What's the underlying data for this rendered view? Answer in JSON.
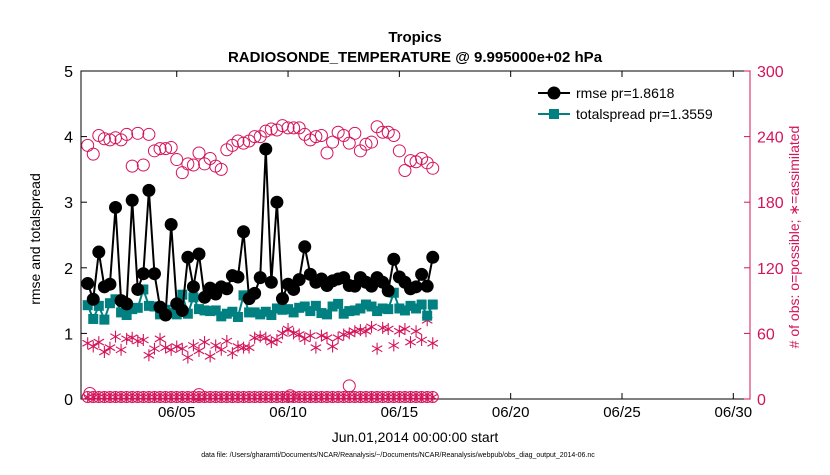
{
  "chart_data": {
    "type": "line",
    "title": "Tropics",
    "subtitle": "RADIOSONDE_TEMPERATURE @ 9.995000e+02 hPa",
    "xlabel": "Jun.01,2014 00:00:00 start",
    "ylabel_left": "rmse and totalspread",
    "ylabel_right": "# of obs: o=possible; ∗=assimilated",
    "footnote": "data file: /Users/gharamti/Documents/NCAR/Reanalysis/~/Documents/NCAR/Reanalysis/webpub/obs_diag_output_2014-06.nc",
    "xlim": [
      0.7,
      30.75
    ],
    "ylim_left": [
      0,
      5
    ],
    "ylim_right": [
      0,
      300
    ],
    "x_ticks": [
      5,
      10,
      15,
      20,
      25,
      30
    ],
    "x_tick_labels": [
      "06/05",
      "06/10",
      "06/15",
      "06/20",
      "06/25",
      "06/30"
    ],
    "y_ticks_left": [
      0,
      1,
      2,
      3,
      4,
      5
    ],
    "y_tick_labels_left": [
      "0",
      "1",
      "2",
      "3",
      "4",
      "5"
    ],
    "y_ticks_right": [
      0,
      60,
      120,
      180,
      240,
      300
    ],
    "y_tick_labels_right": [
      "0",
      "60",
      "120",
      "180",
      "240",
      "300"
    ],
    "legend": [
      {
        "label": "rmse pr=1.8618",
        "color": "#000000"
      },
      {
        "label": "totalspread pr=1.3559",
        "color": "#008080"
      }
    ],
    "colors": {
      "rmse": "#000000",
      "totalspread": "#008080",
      "obs": "#d4145a"
    },
    "x_start": 1.0,
    "x_step": 0.25,
    "series": [
      {
        "name": "rmse",
        "axis": "left",
        "values": [
          1.76,
          1.52,
          2.24,
          1.71,
          1.75,
          2.92,
          1.5,
          1.45,
          3.03,
          1.67,
          1.91,
          3.18,
          1.91,
          1.4,
          1.28,
          2.66,
          1.45,
          1.35,
          2.16,
          1.71,
          2.21,
          1.55,
          1.69,
          1.6,
          1.71,
          1.68,
          1.88,
          1.86,
          2.55,
          1.53,
          1.61,
          1.85,
          3.81,
          1.78,
          3.0,
          1.53,
          1.75,
          1.67,
          1.82,
          2.32,
          1.9,
          1.78,
          1.83,
          1.73,
          1.8,
          1.83,
          1.85,
          1.73,
          1.72,
          1.85,
          1.78,
          1.72,
          1.85,
          1.78,
          1.65,
          2.13,
          1.86,
          1.78,
          1.68,
          1.71,
          1.9,
          1.72,
          2.16
        ]
      },
      {
        "name": "totalspread",
        "axis": "left",
        "values": [
          1.43,
          1.22,
          1.42,
          1.21,
          1.46,
          1.52,
          1.32,
          1.28,
          1.37,
          1.39,
          1.67,
          1.42,
          1.41,
          1.29,
          1.36,
          1.31,
          1.29,
          1.59,
          1.3,
          1.55,
          1.37,
          1.35,
          1.34,
          1.35,
          1.26,
          1.3,
          1.33,
          1.25,
          1.58,
          1.32,
          1.32,
          1.29,
          1.33,
          1.28,
          1.38,
          1.36,
          1.37,
          1.32,
          1.39,
          1.41,
          1.34,
          1.42,
          1.31,
          1.29,
          1.41,
          1.45,
          1.3,
          1.34,
          1.35,
          1.38,
          1.44,
          1.41,
          1.34,
          1.38,
          1.37,
          1.62,
          1.38,
          1.35,
          1.42,
          1.38,
          1.44,
          1.27,
          1.44
        ]
      },
      {
        "name": "possible",
        "axis": "right",
        "values": [
          232,
          224,
          241,
          238,
          237,
          239,
          237,
          242,
          213,
          243,
          214,
          242,
          227,
          229,
          229,
          230,
          219,
          207,
          215,
          214,
          225,
          215,
          220,
          213,
          210,
          228,
          232,
          236,
          234,
          236,
          240,
          240,
          245,
          247,
          246,
          250,
          248,
          248,
          248,
          242,
          237,
          240,
          241,
          225,
          235,
          244,
          241,
          234,
          243,
          227,
          233,
          235,
          249,
          244,
          244,
          241,
          227,
          209,
          218,
          217,
          220,
          216,
          211
        ]
      },
      {
        "name": "possible_low",
        "axis": "right",
        "values": [
          0,
          0,
          0,
          0,
          0,
          0,
          0,
          0,
          0,
          0,
          0,
          0,
          0,
          0,
          0,
          0,
          0,
          0,
          0,
          0,
          0,
          0,
          0,
          0,
          0,
          0,
          0,
          0,
          0,
          0,
          0,
          0,
          0,
          0,
          0,
          0,
          0,
          0,
          0,
          0,
          0,
          0,
          0,
          0,
          0,
          0,
          0,
          0,
          0,
          0,
          0,
          0,
          0,
          0,
          0,
          0,
          0,
          0,
          0,
          0,
          0,
          0,
          0
        ]
      },
      {
        "name": "assimilated",
        "axis": "right",
        "values": [
          51,
          48,
          52,
          43,
          47,
          57,
          45,
          55,
          56,
          53,
          54,
          40,
          46,
          55,
          47,
          45,
          48,
          46,
          38,
          49,
          44,
          52,
          39,
          49,
          45,
          53,
          42,
          48,
          47,
          47,
          56,
          57,
          56,
          52,
          54,
          60,
          64,
          60,
          59,
          55,
          58,
          47,
          58,
          56,
          48,
          56,
          59,
          60,
          62,
          63,
          62,
          66,
          46,
          65,
          64,
          49,
          62,
          64,
          52,
          62,
          54,
          72,
          51
        ]
      },
      {
        "name": "assimilated_low",
        "axis": "right",
        "values": [
          0,
          0,
          0,
          0,
          0,
          0,
          0,
          0,
          0,
          0,
          0,
          0,
          0,
          0,
          0,
          0,
          0,
          0,
          0,
          0,
          0,
          0,
          0,
          0,
          0,
          0,
          0,
          0,
          0,
          0,
          0,
          0,
          0,
          0,
          0,
          0,
          0,
          0,
          0,
          0,
          0,
          0,
          0,
          0,
          0,
          0,
          0,
          0,
          0,
          0,
          0,
          0,
          0,
          0,
          0,
          0,
          0,
          0,
          0,
          0,
          0,
          0,
          0
        ]
      }
    ],
    "extra_points": [
      {
        "series": "possible",
        "x": 12.75,
        "value": 12
      },
      {
        "series": "possible",
        "x": 1.1,
        "value": 5
      },
      {
        "series": "possible",
        "x": 6.0,
        "value": 4
      },
      {
        "series": "possible",
        "x": 10.1,
        "value": 3
      }
    ]
  }
}
